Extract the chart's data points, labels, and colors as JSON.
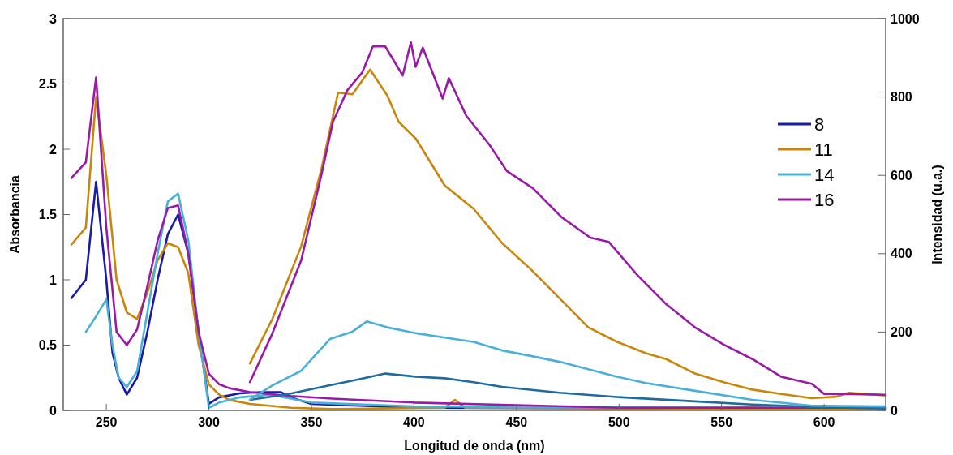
{
  "chart_data": {
    "type": "line",
    "xlabel": "Longitud de onda (nm)",
    "ylabel": "Absorbancia",
    "y2label": "Intensidad (u.a.)",
    "xlim": [
      229,
      630
    ],
    "xticks": [
      250,
      300,
      350,
      400,
      450,
      500,
      550,
      600
    ],
    "ylim": [
      0,
      3
    ],
    "yticks": [
      0,
      0.5,
      1,
      1.5,
      2,
      2.5,
      3
    ],
    "y2lim": [
      0,
      1000
    ],
    "y2ticks": [
      0,
      200,
      400,
      600,
      800,
      1000
    ],
    "grid": false,
    "legend": "right",
    "line_style": "solid",
    "marker": "none",
    "series": [
      {
        "name": "8",
        "color": "#1a1aa8",
        "x": [
          233,
          240,
          245,
          250,
          253,
          256,
          260,
          265,
          270,
          275,
          280,
          285,
          290,
          295,
          300,
          305,
          315,
          325,
          335,
          340,
          350,
          400,
          630
        ],
        "values": [
          0.86,
          1.0,
          1.75,
          1.0,
          0.44,
          0.25,
          0.12,
          0.25,
          0.6,
          1.0,
          1.35,
          1.5,
          1.2,
          0.6,
          0.05,
          0.1,
          0.13,
          0.14,
          0.14,
          0.1,
          0.05,
          0.02,
          0.01
        ]
      },
      {
        "name": "11",
        "color": "#c8860a",
        "x": [
          233,
          240,
          245,
          250,
          255,
          260,
          265,
          270,
          275,
          280,
          285,
          290,
          295,
          300,
          305,
          310,
          320,
          340,
          360,
          415,
          420,
          425,
          630
        ],
        "values": [
          1.27,
          1.4,
          2.4,
          1.8,
          1.0,
          0.75,
          0.7,
          0.9,
          1.15,
          1.28,
          1.25,
          1.05,
          0.5,
          0.2,
          0.12,
          0.08,
          0.05,
          0.02,
          0.01,
          0.02,
          0.08,
          0.02,
          0.01
        ]
      },
      {
        "name": "14",
        "color": "#4ab0d8",
        "x": [
          240,
          245,
          250,
          253,
          256,
          260,
          265,
          270,
          275,
          280,
          285,
          290,
          295,
          300,
          305,
          315,
          330,
          350,
          400,
          630
        ],
        "values": [
          0.6,
          0.72,
          0.85,
          0.5,
          0.25,
          0.18,
          0.3,
          0.75,
          1.2,
          1.6,
          1.66,
          1.3,
          0.6,
          0.02,
          0.06,
          0.1,
          0.12,
          0.06,
          0.03,
          0.02
        ]
      },
      {
        "name": "16",
        "color": "#9a1aa8",
        "x": [
          233,
          240,
          245,
          250,
          255,
          260,
          265,
          270,
          275,
          280,
          285,
          290,
          295,
          300,
          305,
          310,
          320,
          340,
          360,
          400,
          450,
          500,
          630
        ],
        "values": [
          1.78,
          1.9,
          2.55,
          1.4,
          0.6,
          0.5,
          0.62,
          0.95,
          1.3,
          1.55,
          1.57,
          1.2,
          0.6,
          0.28,
          0.2,
          0.17,
          0.14,
          0.11,
          0.09,
          0.06,
          0.04,
          0.02,
          0.02
        ]
      },
      {
        "color": "#1f6aa0",
        "axis": "y2",
        "x": [
          320,
          338,
          359,
          373,
          386,
          401,
          415,
          429,
          443,
          471,
          499,
          537,
          565,
          600,
          630
        ],
        "values": [
          27,
          41,
          64,
          79,
          94,
          86,
          82,
          72,
          60,
          45,
          34,
          23,
          15,
          8,
          5
        ]
      },
      {
        "color": "#c8860a",
        "axis": "y2",
        "x": [
          320,
          331,
          345,
          355,
          363,
          370,
          378.6,
          387,
          392.5,
          401,
          415,
          429,
          443,
          457,
          471,
          485,
          499,
          513,
          523,
          537,
          551,
          565,
          579,
          594,
          606,
          612,
          630
        ],
        "values": [
          120,
          234,
          419,
          619,
          811,
          807,
          870,
          804,
          737,
          693,
          574,
          515,
          427,
          360,
          286,
          212,
          175,
          146,
          131,
          94,
          72,
          53,
          42,
          31,
          35,
          45,
          38
        ]
      },
      {
        "color": "#4ab0d8",
        "axis": "y2",
        "x": [
          320,
          331,
          345,
          359,
          370,
          377,
          387,
          401,
          415,
          429,
          443,
          457,
          471,
          485,
          499,
          513,
          537,
          565,
          594,
          630
        ],
        "values": [
          27,
          64,
          101,
          182,
          201,
          227,
          212,
          197,
          186,
          175,
          153,
          139,
          124,
          105,
          86,
          70,
          50,
          27,
          12,
          10
        ]
      },
      {
        "color": "#9a1aa8",
        "axis": "y2",
        "x": [
          320,
          331,
          345,
          355,
          360.5,
          367.6,
          374.7,
          380,
          386,
          394.5,
          398.5,
          400.8,
          404.3,
          414,
          417,
          425.5,
          436.8,
          445.3,
          458,
          472,
          486,
          495,
          509,
          523,
          537,
          551,
          565,
          579,
          594,
          600,
          608,
          630
        ],
        "values": [
          72,
          197,
          383,
          604,
          737,
          818,
          862,
          929,
          929,
          855,
          940,
          877,
          926,
          796,
          848,
          752,
          678,
          611,
          567,
          493,
          441,
          430,
          345,
          271,
          212,
          168,
          131,
          86,
          68,
          42,
          42,
          40
        ]
      }
    ]
  }
}
